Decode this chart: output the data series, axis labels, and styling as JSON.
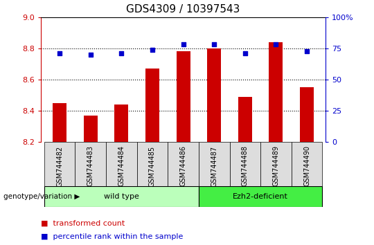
{
  "title": "GDS4309 / 10397543",
  "samples": [
    "GSM744482",
    "GSM744483",
    "GSM744484",
    "GSM744485",
    "GSM744486",
    "GSM744487",
    "GSM744488",
    "GSM744489",
    "GSM744490"
  ],
  "transformed_count": [
    8.45,
    8.37,
    8.44,
    8.67,
    8.78,
    8.8,
    8.49,
    8.84,
    8.55
  ],
  "percentile_rank": [
    71,
    70,
    71,
    74,
    78,
    78,
    71,
    78,
    73
  ],
  "ylim_left": [
    8.2,
    9.0
  ],
  "ylim_right": [
    0,
    100
  ],
  "yticks_left": [
    8.2,
    8.4,
    8.6,
    8.8,
    9.0
  ],
  "yticks_right": [
    0,
    25,
    50,
    75,
    100
  ],
  "bar_color": "#cc0000",
  "dot_color": "#0000cc",
  "bar_bottom": 8.2,
  "wild_type_count": 5,
  "ezh2_count": 4,
  "wild_type_label": "wild type",
  "ezh2_label": "Ezh2-deficient",
  "genotype_label": "genotype/variation",
  "legend_bar_label": "transformed count",
  "legend_dot_label": "percentile rank within the sample",
  "wild_type_color": "#bbffbb",
  "ezh2_color": "#44ee44",
  "sample_cell_color": "#dddddd",
  "dotgrid_color": "#333333",
  "background_color": "#ffffff",
  "title_fontsize": 11,
  "tick_fontsize": 8,
  "sample_fontsize": 7,
  "group_fontsize": 8,
  "legend_fontsize": 8
}
